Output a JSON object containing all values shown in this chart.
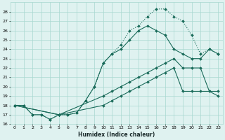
{
  "xlabel": "Humidex (Indice chaleur)",
  "bg_color": "#dff2f0",
  "grid_color": "#a8d8d0",
  "line_color": "#1a6b5a",
  "xlim": [
    -0.5,
    23.5
  ],
  "ylim": [
    16,
    29
  ],
  "xticks": [
    0,
    1,
    2,
    3,
    4,
    5,
    6,
    7,
    8,
    9,
    10,
    11,
    12,
    13,
    14,
    15,
    16,
    17,
    18,
    19,
    20,
    21,
    22,
    23
  ],
  "yticks": [
    16,
    17,
    18,
    19,
    20,
    21,
    22,
    23,
    24,
    25,
    26,
    27,
    28
  ],
  "curve_top_x": [
    0,
    1,
    2,
    3,
    4,
    5,
    6,
    7,
    8,
    9,
    10,
    11,
    12,
    13,
    14,
    15,
    16,
    17,
    18,
    19,
    20,
    21,
    22,
    23
  ],
  "curve_top_y": [
    18,
    18,
    17,
    17,
    16.5,
    17,
    17,
    17.2,
    18.5,
    20,
    22.5,
    23.5,
    24.5,
    26,
    26.5,
    27.5,
    28.3,
    28.3,
    27.5,
    27,
    25.5,
    23.5,
    24,
    23.5
  ],
  "curve_mid1_x": [
    0,
    1,
    2,
    3,
    4,
    5,
    6,
    7,
    8,
    9,
    10,
    11,
    12,
    13,
    14,
    15,
    16,
    17,
    18,
    19,
    20,
    21,
    22,
    23
  ],
  "curve_mid1_y": [
    18,
    18,
    17,
    17,
    16.5,
    17,
    17,
    17.2,
    18.5,
    20,
    22.5,
    23.5,
    24,
    25,
    26,
    26.5,
    26,
    25.5,
    24,
    23.5,
    23,
    23,
    24,
    23.5
  ],
  "curve_mid2_x": [
    0,
    5,
    10,
    11,
    12,
    13,
    14,
    15,
    16,
    17,
    18,
    19,
    20,
    21,
    22,
    23
  ],
  "curve_mid2_y": [
    18,
    17,
    19,
    19.5,
    20,
    20.5,
    21,
    21.5,
    22,
    22.5,
    23,
    22,
    22,
    22,
    19.5,
    19
  ],
  "curve_bot_x": [
    0,
    5,
    10,
    11,
    12,
    13,
    14,
    15,
    16,
    17,
    18,
    19,
    20,
    21,
    22,
    23
  ],
  "curve_bot_y": [
    18,
    17,
    18,
    18.5,
    19,
    19.5,
    20,
    20.5,
    21,
    21.5,
    22,
    19.5,
    19.5,
    19.5,
    19.5,
    19.5
  ],
  "curve_top_dotted": true,
  "marker": "D",
  "markersize": 2,
  "lw": 0.8,
  "tick_fontsize": 4.5,
  "xlabel_fontsize": 5.5
}
